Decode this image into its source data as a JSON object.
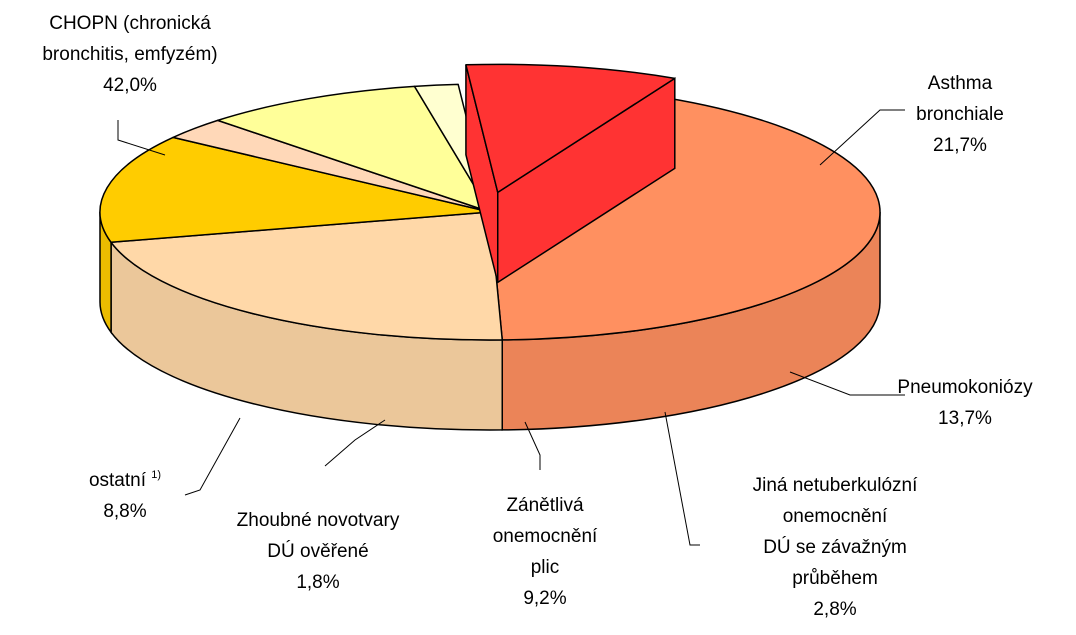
{
  "chart_data": {
    "type": "pie3d",
    "categories": [
      "CHOPN (chronická\nbronchitis, emfyzém)",
      "Asthma\nbronchiale",
      "Pneumokoniózy",
      "Jiná netuberkulózní\nonemocnění\nDÚ se závažným\nprůběhem",
      "Zánětlivá\nonemocnění\nplic",
      "Zhoubné novotvary\nDÚ ověřené",
      "ostatní"
    ],
    "notes": [
      null,
      null,
      null,
      null,
      null,
      null,
      "1)"
    ],
    "values": [
      42.0,
      21.7,
      13.7,
      2.8,
      9.2,
      1.8,
      8.8
    ],
    "value_labels": [
      "42,0%",
      "21,7%",
      "13,7%",
      "2,8%",
      "9,2%",
      "1,8%",
      "8,8%"
    ],
    "colors": [
      "#ff9060",
      "#ffd8a8",
      "#ffcc00",
      "#ffd8b8",
      "#ffff99",
      "#ffffd0",
      "#ff3333"
    ],
    "exploded": [
      6
    ]
  }
}
